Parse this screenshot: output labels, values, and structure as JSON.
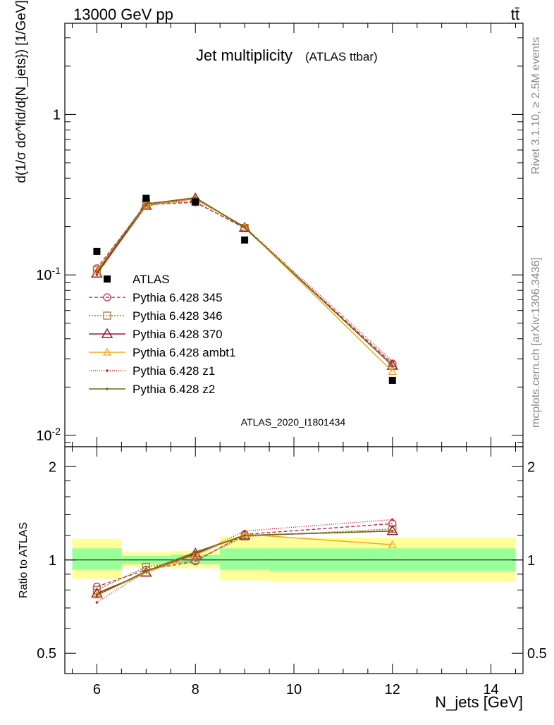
{
  "header": {
    "energy_label": "13000 GeV pp",
    "process_label": "tt̄"
  },
  "side_labels": {
    "rivet": "Rivet 3.1.10, ≥ 2.5M events",
    "mcplots": "mcplots.cern.ch [arXiv:1306.3436]"
  },
  "chart_data": [
    {
      "type": "line",
      "title": "Jet multiplicity",
      "subtitle": "(ATLAS ttbar)",
      "ylabel": "d(1/σ dσ^fid/d{N_jets}) [1/GeV]",
      "xlabel": "N_jets [GeV]",
      "xlim": [
        5.35,
        14.65
      ],
      "ylim": [
        0.0085,
        3.7
      ],
      "yscale": "log",
      "x_ticks": [
        6,
        8,
        10,
        12,
        14
      ],
      "y_ticks": [
        {
          "value": 0.01,
          "label": "10^-2"
        },
        {
          "value": 0.1,
          "label": "10^-1"
        },
        {
          "value": 1,
          "label": "1"
        }
      ],
      "analysis_label": "ATLAS_2020_I1801434",
      "legend_position": "left-middle",
      "data": {
        "name": "ATLAS",
        "x": [
          6,
          7,
          8,
          9,
          12
        ],
        "y": [
          0.14,
          0.3,
          0.285,
          0.165,
          0.022
        ]
      },
      "series": [
        {
          "name": "Pythia 6.428 345",
          "color": "#c2314e",
          "dash": "5,3",
          "marker": "circle",
          "x": [
            6,
            7,
            8,
            9,
            12
          ],
          "y": [
            0.11,
            0.275,
            0.283,
            0.196,
            0.028
          ]
        },
        {
          "name": "Pythia 6.428 346",
          "color": "#a5793a",
          "dash": "2,2",
          "marker": "square",
          "x": [
            6,
            7,
            8,
            9,
            12
          ],
          "y": [
            0.107,
            0.281,
            0.286,
            0.196,
            0.0273
          ]
        },
        {
          "name": "Pythia 6.428 370",
          "color": "#9b1c2e",
          "dash": "",
          "marker": "triangle",
          "x": [
            6,
            7,
            8,
            9,
            12
          ],
          "y": [
            0.102,
            0.27,
            0.3,
            0.197,
            0.0272
          ]
        },
        {
          "name": "Pythia 6.428 ambt1",
          "color": "#f5a623",
          "dash": "",
          "marker": "triangle-open",
          "x": [
            6,
            7,
            8,
            9,
            12
          ],
          "y": [
            0.106,
            0.272,
            0.298,
            0.199,
            0.025
          ]
        },
        {
          "name": "Pythia 6.428 z1",
          "color": "#e02020",
          "dash": "1,2",
          "marker": "dot",
          "x": [
            6,
            7,
            8,
            9,
            12
          ],
          "y": [
            0.1,
            0.275,
            0.297,
            0.2,
            0.029
          ]
        },
        {
          "name": "Pythia 6.428 z2",
          "color": "#6b6b14",
          "dash": "",
          "marker": "dot",
          "x": [
            6,
            7,
            8,
            9,
            12
          ],
          "y": [
            0.104,
            0.277,
            0.303,
            0.198,
            0.0272
          ]
        }
      ]
    },
    {
      "type": "line",
      "ylabel": "Ratio to ATLAS",
      "xlim": [
        5.35,
        14.65
      ],
      "ylim": [
        0.43,
        2.32
      ],
      "yscale": "log",
      "y_ticks": [
        {
          "value": 0.5,
          "label": "0.5"
        },
        {
          "value": 1,
          "label": "1"
        },
        {
          "value": 2,
          "label": "2"
        }
      ],
      "bands": [
        {
          "x0": 5.5,
          "x1": 6.5,
          "yellow": [
            0.87,
            1.17
          ],
          "green": [
            0.93,
            1.09
          ]
        },
        {
          "x0": 6.5,
          "x1": 7.5,
          "yellow": [
            0.95,
            1.06
          ],
          "green": [
            0.97,
            1.03
          ]
        },
        {
          "x0": 7.5,
          "x1": 8.5,
          "yellow": [
            0.94,
            1.07
          ],
          "green": [
            0.97,
            1.04
          ]
        },
        {
          "x0": 8.5,
          "x1": 9.5,
          "yellow": [
            0.86,
            1.19
          ],
          "green": [
            0.93,
            1.09
          ]
        },
        {
          "x0": 9.5,
          "x1": 14.5,
          "yellow": [
            0.85,
            1.18
          ],
          "green": [
            0.92,
            1.09
          ]
        }
      ],
      "series": [
        {
          "name": "Pythia 6.428 345",
          "x": [
            6,
            7,
            8,
            9,
            12
          ],
          "y": [
            0.82,
            0.93,
            0.99,
            1.21,
            1.31
          ]
        },
        {
          "name": "Pythia 6.428 346",
          "x": [
            6,
            7,
            8,
            9,
            12
          ],
          "y": [
            0.8,
            0.95,
            1.0,
            1.19,
            1.26
          ]
        },
        {
          "name": "Pythia 6.428 370",
          "x": [
            6,
            7,
            8,
            9,
            12
          ],
          "y": [
            0.78,
            0.91,
            1.05,
            1.2,
            1.24
          ]
        },
        {
          "name": "Pythia 6.428 ambt1",
          "x": [
            6,
            7,
            8,
            9,
            12
          ],
          "y": [
            0.77,
            0.91,
            1.04,
            1.21,
            1.12
          ]
        },
        {
          "name": "Pythia 6.428 z1",
          "x": [
            6,
            7,
            8,
            9,
            12
          ],
          "y": [
            0.73,
            0.92,
            1.04,
            1.24,
            1.35
          ]
        },
        {
          "name": "Pythia 6.428 z2",
          "x": [
            6,
            7,
            8,
            9,
            12
          ],
          "y": [
            0.77,
            0.92,
            1.06,
            1.2,
            1.24
          ]
        }
      ]
    }
  ]
}
